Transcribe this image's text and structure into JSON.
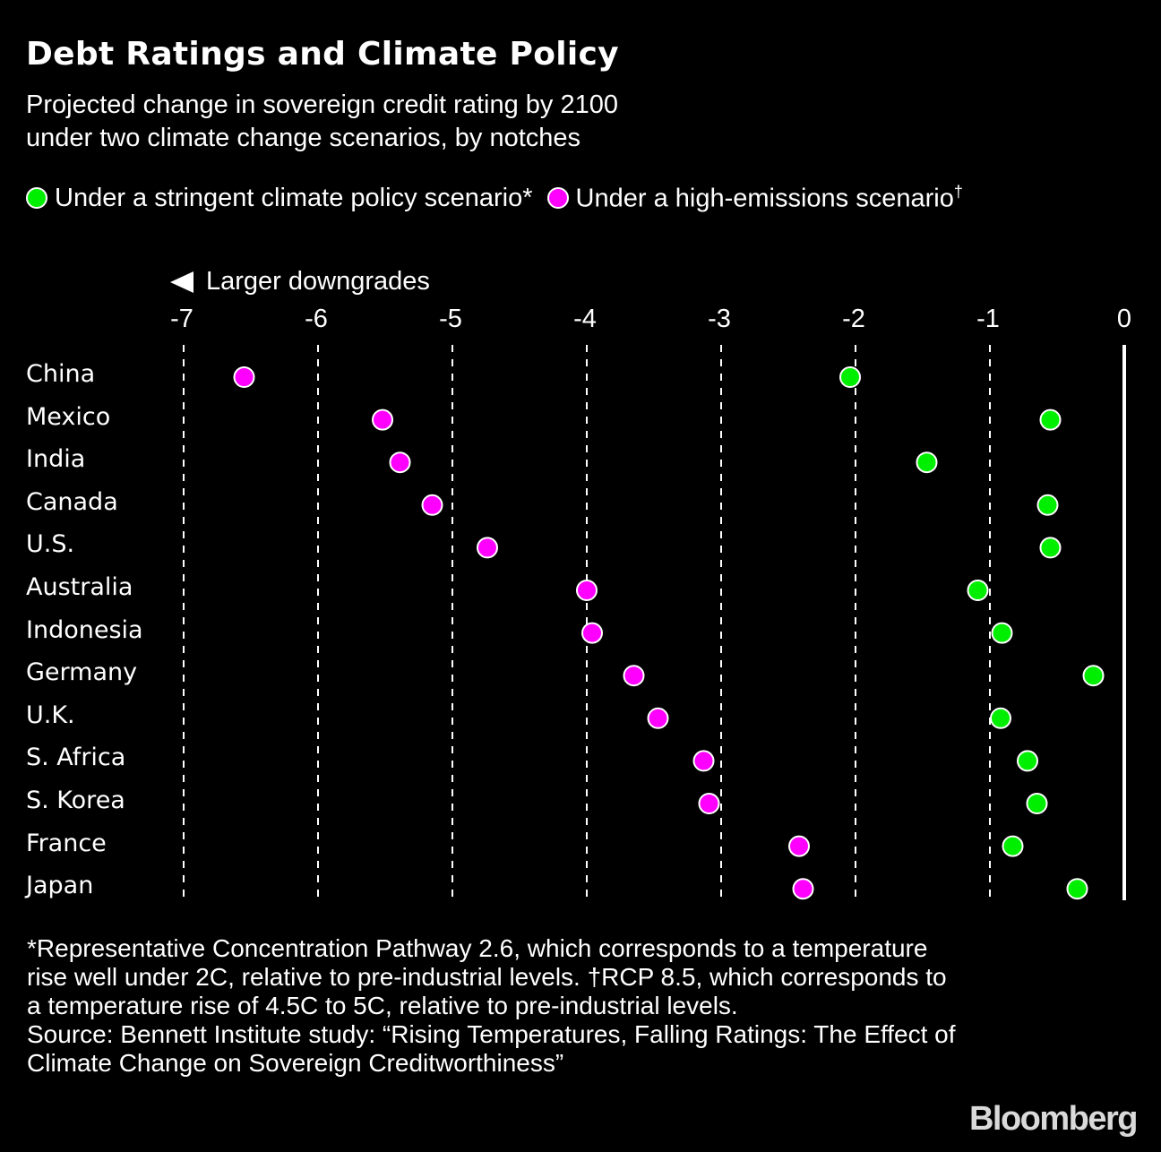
{
  "header": {
    "title": "Debt Ratings and Climate Policy",
    "subtitle_line1": "Projected change in sovereign credit rating by 2100",
    "subtitle_line2": "under two climate change scenarios, by notches"
  },
  "legend": [
    {
      "label": "Under a stringent climate policy scenario*",
      "color": "#00ee00"
    },
    {
      "label": "Under a high-emissions scenario",
      "sup": "†",
      "color": "#ff00ff"
    }
  ],
  "direction_label": "Larger downgrades",
  "footnotes": {
    "line1": "*Representative Concentration Pathway 2.6, which corresponds to a temperature",
    "line2": "rise well under 2C, relative to pre-industrial levels. †RCP 8.5, which corresponds to",
    "line3": "a temperature rise of 4.5C to 5C, relative to pre-industrial levels.",
    "line4": "Source: Bennett Institute study: “Rising Temperatures, Falling Ratings: The Effect of",
    "line5": "Climate Change on Sovereign Creditworthiness”"
  },
  "logo": "Bloomberg",
  "chart_data": {
    "type": "scatter",
    "title": "Debt Ratings and Climate Policy",
    "subtitle": "Projected change in sovereign credit rating by 2100 under two climate change scenarios, by notches",
    "xlabel": "Larger downgrades",
    "xlim": [
      -7,
      0
    ],
    "xticks": [
      "-7",
      "-6",
      "-5",
      "-4",
      "-3",
      "-2",
      "-1",
      "0"
    ],
    "grid": true,
    "legend_position": "top-left",
    "categories": [
      "China",
      "Mexico",
      "India",
      "Canada",
      "U.S.",
      "Australia",
      "Indonesia",
      "Germany",
      "U.K.",
      "S. Africa",
      "S. Korea",
      "France",
      "Japan"
    ],
    "series": [
      {
        "name": "Under a stringent climate policy scenario*",
        "color": "#00ee00",
        "values": [
          -2.04,
          -0.55,
          -1.47,
          -0.57,
          -0.55,
          -1.09,
          -0.91,
          -0.23,
          -0.92,
          -0.72,
          -0.65,
          -0.83,
          -0.35
        ]
      },
      {
        "name": "Under a high-emissions scenario†",
        "color": "#ff00ff",
        "values": [
          -6.55,
          -5.52,
          -5.39,
          -5.15,
          -4.74,
          -4.0,
          -3.96,
          -3.65,
          -3.47,
          -3.13,
          -3.09,
          -2.42,
          -2.39
        ]
      }
    ]
  }
}
